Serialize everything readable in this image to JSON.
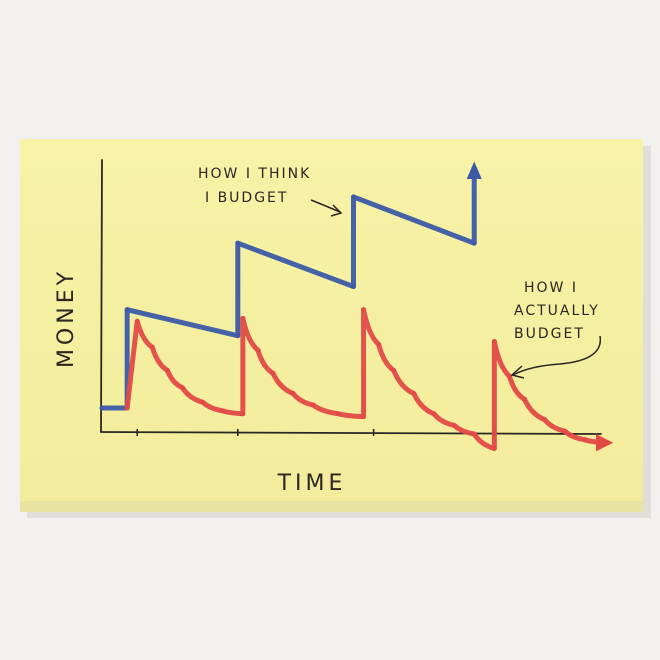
{
  "chart_data": {
    "type": "line",
    "xlabel": "TIME",
    "ylabel": "MONEY",
    "xlim": [
      0,
      100
    ],
    "ylim": [
      0,
      100
    ],
    "grid": false,
    "legend": "none",
    "x_ticks": [
      7,
      27,
      54,
      78
    ],
    "series": [
      {
        "key": "think",
        "color": "#3c5aa8",
        "label_lines": [
          "HOW I THINK",
          "I BUDGET"
        ],
        "end_arrow": "up",
        "points": [
          [
            0,
            12
          ],
          [
            5,
            12
          ],
          [
            5,
            46
          ],
          [
            27,
            37
          ],
          [
            27,
            69
          ],
          [
            50,
            54
          ],
          [
            50,
            85
          ],
          [
            74,
            69
          ],
          [
            74,
            95
          ]
        ]
      },
      {
        "key": "actual",
        "color": "#e34a47",
        "label_lines": [
          "HOW I",
          "ACTUALLY",
          "BUDGET"
        ],
        "end_arrow": "right",
        "points": [
          [
            5,
            12
          ],
          [
            7,
            42
          ],
          [
            10,
            33
          ],
          [
            13,
            25
          ],
          [
            16,
            19
          ],
          [
            20,
            14
          ],
          [
            24,
            11
          ],
          [
            28,
            10
          ],
          [
            28,
            43
          ],
          [
            31,
            32
          ],
          [
            34,
            24
          ],
          [
            38,
            17
          ],
          [
            42,
            13
          ],
          [
            47,
            10
          ],
          [
            52,
            9
          ],
          [
            52,
            46
          ],
          [
            55,
            34
          ],
          [
            58,
            25
          ],
          [
            62,
            17
          ],
          [
            66,
            10
          ],
          [
            70,
            6
          ],
          [
            74,
            3
          ],
          [
            78,
            -2
          ],
          [
            78,
            35
          ],
          [
            81,
            23
          ],
          [
            84,
            15
          ],
          [
            88,
            8
          ],
          [
            92,
            4
          ],
          [
            96,
            1
          ],
          [
            100,
            0
          ]
        ]
      }
    ]
  }
}
